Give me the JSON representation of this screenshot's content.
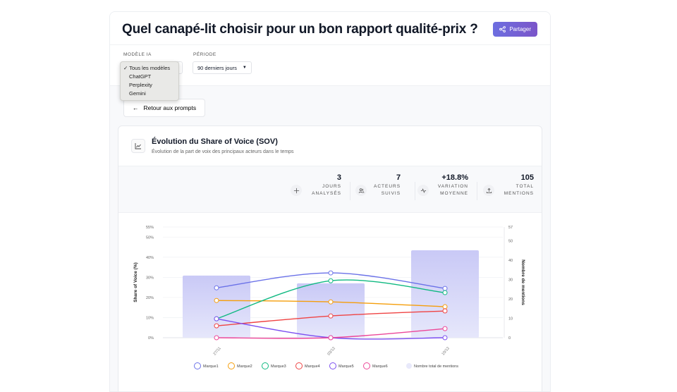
{
  "header": {
    "title": "Quel canapé-lit choisir pour un bon rapport qualité-prix ?",
    "share_label": "Partager"
  },
  "filters": {
    "model_label": "MODÈLE IA",
    "period_label": "PÉRIODE",
    "period_value": "90 derniers jours",
    "model_options": [
      "Tous les modèles",
      "ChatGPT",
      "Perplexity",
      "Gemini"
    ],
    "model_selected": "✓ Tous les modèles"
  },
  "back_label": "Retour aux prompts",
  "card": {
    "title": "Évolution du Share of Voice (SOV)",
    "subtitle": "Évolution de la part de voix des principaux acteurs dans le temps"
  },
  "stats": [
    {
      "value": "3",
      "label1": "JOURS",
      "label2": "ANALYSÉS",
      "icon": "plus-icon"
    },
    {
      "value": "7",
      "label1": "ACTEURS",
      "label2": "SUIVIS",
      "icon": "users-icon"
    },
    {
      "value": "+18.8%",
      "label1": "VARIATION",
      "label2": "MOYENNE",
      "icon": "activity-icon"
    },
    {
      "value": "105",
      "label1": "TOTAL",
      "label2": "MENTIONS",
      "icon": "upload-icon"
    }
  ],
  "chart_data": {
    "type": "line",
    "x": [
      "27/11",
      "03/12",
      "10/12"
    ],
    "ylabel": "Share of Voice (%)",
    "y2label": "Nombre de mentions",
    "yticks": [
      "0%",
      "10%",
      "20%",
      "30%",
      "40%",
      "50%",
      "55%"
    ],
    "ylim": [
      0,
      55
    ],
    "y2ticks": [
      "0",
      "10",
      "20",
      "30",
      "40",
      "50",
      "57"
    ],
    "y2lim": [
      0,
      57
    ],
    "bars": {
      "name": "Nombre total de mentions",
      "values": [
        32,
        28,
        45
      ],
      "color": "#c7c8f5"
    },
    "series": [
      {
        "name": "Marque1",
        "color": "#6b72e8",
        "values": [
          24.8,
          32.2,
          24.5
        ]
      },
      {
        "name": "Marque2",
        "color": "#f59e0b",
        "values": [
          18.5,
          17.8,
          15.4
        ]
      },
      {
        "name": "Marque3",
        "color": "#10b981",
        "values": [
          9.4,
          28.3,
          22.4
        ]
      },
      {
        "name": "Marque4",
        "color": "#ef4444",
        "values": [
          5.9,
          10.8,
          13.3
        ]
      },
      {
        "name": "Marque5",
        "color": "#7c4ff0",
        "values": [
          9.4,
          0,
          0
        ]
      },
      {
        "name": "Marque6",
        "color": "#ec4899",
        "values": [
          0,
          0,
          4.5
        ]
      }
    ]
  }
}
